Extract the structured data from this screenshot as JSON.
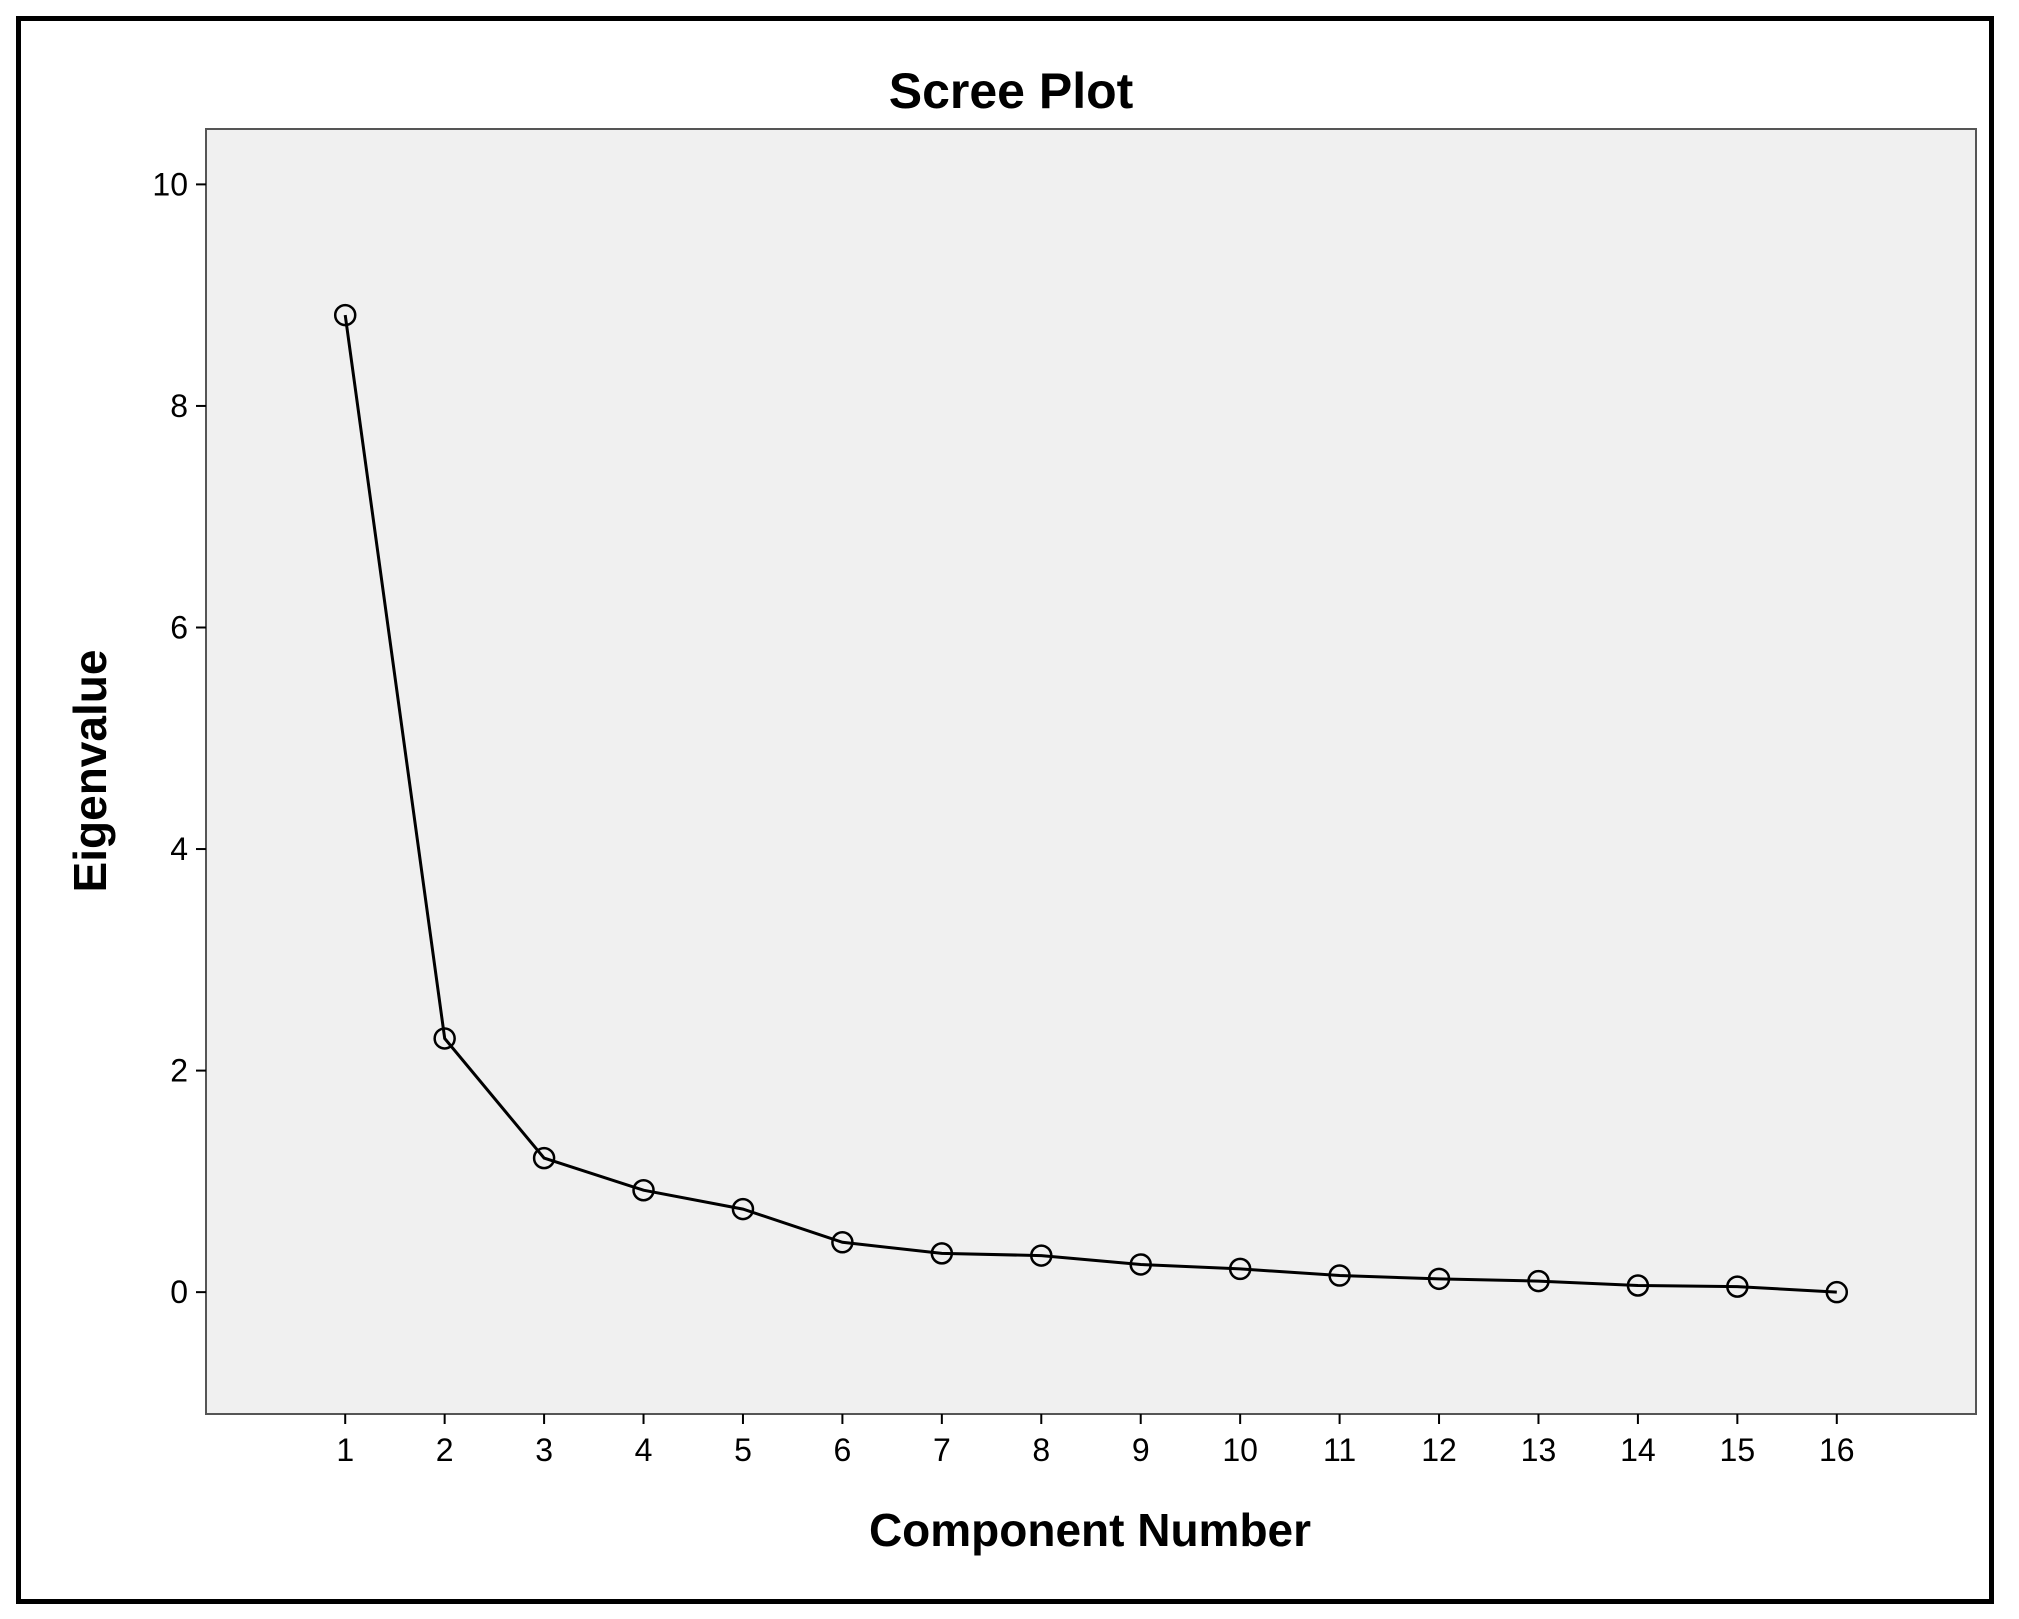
{
  "chart_data": {
    "type": "line",
    "title": "Scree Plot",
    "xlabel": "Component Number",
    "ylabel": "Eigenvalue",
    "x": [
      1,
      2,
      3,
      4,
      5,
      6,
      7,
      8,
      9,
      10,
      11,
      12,
      13,
      14,
      15,
      16
    ],
    "x_ticks": [
      "1",
      "2",
      "3",
      "4",
      "5",
      "6",
      "7",
      "8",
      "9",
      "10",
      "11",
      "12",
      "13",
      "14",
      "15",
      "16"
    ],
    "y_ticks": [
      "0",
      "2",
      "4",
      "6",
      "8",
      "10"
    ],
    "y_tick_values": [
      0,
      2,
      4,
      6,
      8,
      10
    ],
    "series": [
      {
        "values": [
          8.82,
          2.29,
          1.21,
          0.92,
          0.75,
          0.45,
          0.35,
          0.33,
          0.25,
          0.21,
          0.15,
          0.12,
          0.1,
          0.06,
          0.05,
          0.0
        ]
      }
    ],
    "xlim": [
      -0.4,
      17.4
    ],
    "ylim": [
      -1.1,
      10.5
    ],
    "grid": false,
    "legend": "none",
    "colors": {
      "plot_background": "#f0f0f0",
      "line": "#000000",
      "marker_stroke": "#000000"
    },
    "marker": "open-circle"
  }
}
